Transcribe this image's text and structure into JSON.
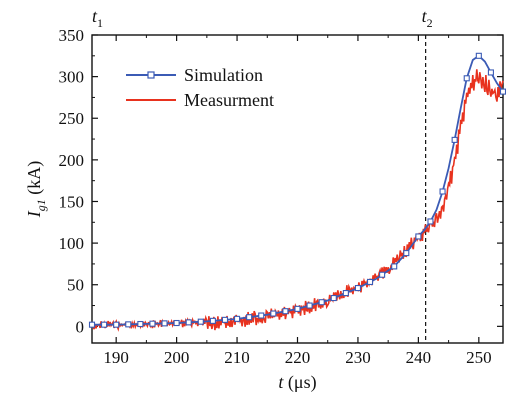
{
  "chart_data": {
    "type": "line",
    "xlabel": "t (μs)",
    "xlabel_italic_part": "t",
    "xlabel_rest": " (μs)",
    "ylabel_main": "I",
    "ylabel_sub": "g1",
    "ylabel_unit": " (kA)",
    "xlim": [
      186,
      254
    ],
    "ylim": [
      -20,
      350
    ],
    "xticks": [
      190,
      200,
      210,
      220,
      230,
      240,
      250
    ],
    "yticks": [
      0,
      50,
      100,
      150,
      200,
      250,
      300,
      350
    ],
    "grid": false,
    "legend": "top-left",
    "annotations": [
      {
        "label_main": "t",
        "label_sub": "1",
        "x": 186
      },
      {
        "label_main": "t",
        "label_sub": "2",
        "x": 241.2,
        "dashed_line": true
      }
    ],
    "series": [
      {
        "name": "Simulation",
        "color": "#3b5bb5",
        "marker": "open-square",
        "x": [
          186,
          190,
          195,
          200,
          205,
          210,
          215,
          220,
          225,
          230,
          233,
          236,
          238,
          240,
          241,
          242,
          243,
          244,
          245,
          246,
          247,
          248,
          249,
          250,
          251,
          252,
          253,
          254
        ],
        "y": [
          2,
          2,
          3,
          4,
          6,
          9,
          14,
          21,
          31,
          46,
          57,
          72,
          88,
          108,
          116,
          126,
          140,
          162,
          190,
          224,
          262,
          298,
          320,
          325,
          318,
          305,
          292,
          282
        ]
      },
      {
        "name": "Measurment",
        "color": "#e8321e",
        "x": [
          186,
          190,
          195,
          200,
          205,
          210,
          215,
          220,
          225,
          230,
          233,
          236,
          238,
          240,
          241,
          242,
          243,
          244,
          245,
          246,
          247,
          248,
          249,
          250,
          251,
          252,
          253,
          254
        ],
        "y": [
          4,
          4,
          5,
          6,
          8,
          11,
          16,
          24,
          36,
          52,
          63,
          80,
          96,
          112,
          118,
          125,
          132,
          145,
          170,
          205,
          245,
          280,
          300,
          305,
          298,
          290,
          282,
          295
        ]
      }
    ]
  }
}
